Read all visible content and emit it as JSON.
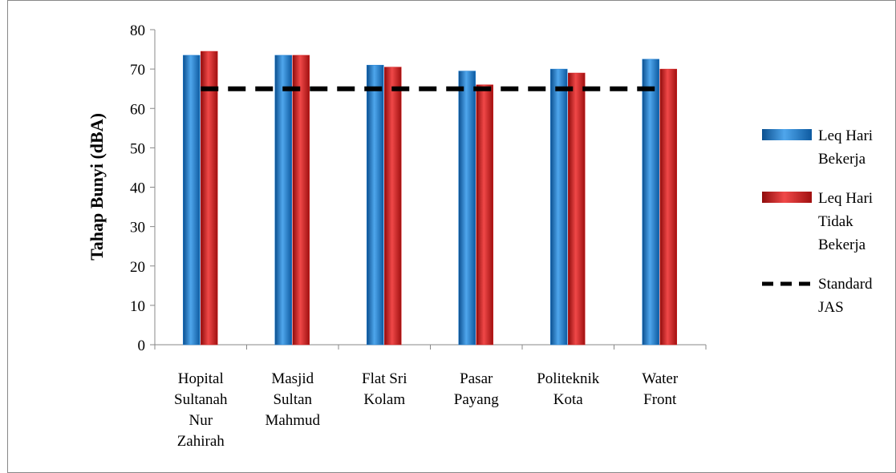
{
  "chart_data": {
    "type": "bar",
    "y_label": "Tahap Bunyi (dBA)",
    "categories": [
      "Hopital Sultanah Nur Zahirah",
      "Masjid Sultan Mahmud",
      "Flat Sri Kolam",
      "Pasar Payang",
      "Politeknik Kota",
      "Water Front"
    ],
    "series": [
      {
        "name": "Leq Hari Bekerja",
        "color": "#1f7fd4",
        "values": [
          73.5,
          73.5,
          71,
          69.5,
          70,
          72.5
        ]
      },
      {
        "name": "Leq Hari Tidak Bekerja",
        "color": "#d42020",
        "values": [
          74.5,
          73.5,
          70.5,
          66,
          69,
          70
        ]
      },
      {
        "name": "Standard JAS",
        "color": "#000000",
        "type": "line",
        "dashed": true,
        "values": [
          65,
          65,
          65,
          65,
          65,
          65
        ]
      }
    ],
    "ylim": [
      0,
      80
    ],
    "yticks": [
      0,
      10,
      20,
      30,
      40,
      50,
      60,
      70,
      80
    ],
    "legend": "right"
  }
}
